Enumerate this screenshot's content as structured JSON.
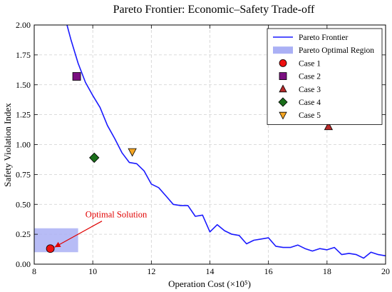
{
  "chart_data": {
    "type": "line",
    "title": "Pareto Frontier: Economic–Safety Trade-off",
    "xlabel": "Operation Cost (×10⁵)",
    "ylabel": "Safety Violation Index",
    "xlim": [
      8,
      20
    ],
    "ylim": [
      0,
      2
    ],
    "xticks": [
      8,
      10,
      12,
      14,
      16,
      18,
      20
    ],
    "xtick_labels": [
      "8",
      "10",
      "12",
      "14",
      "16",
      "18",
      "20"
    ],
    "yticks": [
      0,
      0.25,
      0.5,
      0.75,
      1.0,
      1.25,
      1.5,
      1.75,
      2.0
    ],
    "ytick_labels": [
      "0.00",
      "0.25",
      "0.50",
      "0.75",
      "1.00",
      "1.25",
      "1.50",
      "1.75",
      "2.00"
    ],
    "grid": true,
    "legend_position": "top-right",
    "frontier": {
      "name": "Pareto Frontier",
      "color": "#1a1aff",
      "x": [
        9.12,
        9.25,
        9.5,
        9.75,
        10.0,
        10.25,
        10.5,
        10.75,
        11.0,
        11.25,
        11.5,
        11.75,
        12.0,
        12.25,
        12.5,
        12.75,
        13.0,
        13.25,
        13.5,
        13.75,
        14.0,
        14.25,
        14.5,
        14.75,
        15.0,
        15.25,
        15.5,
        15.75,
        16.0,
        16.25,
        16.5,
        16.75,
        17.0,
        17.25,
        17.5,
        17.75,
        18.0,
        18.25,
        18.5,
        18.75,
        19.0,
        19.25,
        19.5,
        19.75,
        20.0
      ],
      "y": [
        2.0,
        1.88,
        1.68,
        1.52,
        1.41,
        1.31,
        1.16,
        1.05,
        0.93,
        0.85,
        0.84,
        0.78,
        0.67,
        0.64,
        0.57,
        0.5,
        0.49,
        0.49,
        0.4,
        0.41,
        0.27,
        0.33,
        0.28,
        0.25,
        0.24,
        0.17,
        0.2,
        0.21,
        0.22,
        0.15,
        0.14,
        0.14,
        0.16,
        0.13,
        0.11,
        0.13,
        0.12,
        0.14,
        0.08,
        0.09,
        0.08,
        0.05,
        0.1,
        0.08,
        0.07
      ]
    },
    "region": {
      "name": "Pareto Optimal Region",
      "color": "#aab0f5",
      "x_range": [
        8.0,
        9.5
      ],
      "y_range": [
        0.1,
        0.3
      ]
    },
    "cases": [
      {
        "name": "Case 1",
        "x": 8.55,
        "y": 0.13,
        "marker": "circle",
        "color": "#ee1111"
      },
      {
        "name": "Case 2",
        "x": 9.45,
        "y": 1.57,
        "marker": "square",
        "color": "#7a0f80"
      },
      {
        "name": "Case 3",
        "x": 18.05,
        "y": 1.15,
        "marker": "triangle-up",
        "color": "#b72a2a"
      },
      {
        "name": "Case 4",
        "x": 10.05,
        "y": 0.89,
        "marker": "diamond",
        "color": "#1a6e1a"
      },
      {
        "name": "Case 5",
        "x": 11.35,
        "y": 0.94,
        "marker": "triangle-down",
        "color": "#f5a623"
      }
    ],
    "annotation": {
      "text": "Optimal Solution",
      "x": 8.55,
      "y": 0.13,
      "text_x": 10.8,
      "text_y": 0.39,
      "color": "#e00000"
    }
  }
}
